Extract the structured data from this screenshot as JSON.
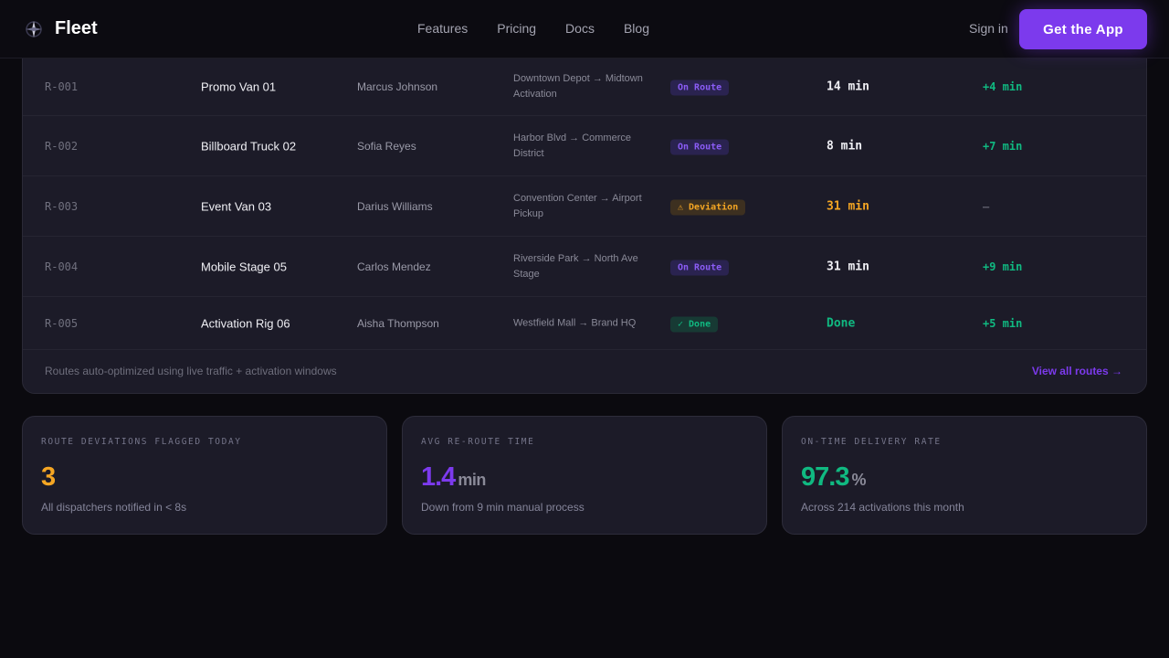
{
  "header": {
    "brand": "Fleet",
    "nav": [
      "Features",
      "Pricing",
      "Docs",
      "Blog"
    ],
    "sign_in": "Sign in",
    "cta": "Get the App"
  },
  "routes": [
    {
      "id": "R-001",
      "vehicle": "Promo Van 01",
      "driver": "Marcus Johnson",
      "route": "Downtown Depot → Midtown Activation",
      "status": "On Route",
      "status_type": "onroute",
      "eta": "14 min",
      "eta_type": "normal",
      "buffer": "+4 min"
    },
    {
      "id": "R-002",
      "vehicle": "Billboard Truck 02",
      "driver": "Sofia Reyes",
      "route": "Harbor Blvd → Commerce District",
      "status": "On Route",
      "status_type": "onroute",
      "eta": "8 min",
      "eta_type": "normal",
      "buffer": "+7 min"
    },
    {
      "id": "R-003",
      "vehicle": "Event Van 03",
      "driver": "Darius Williams",
      "route": "Convention Center → Airport Pickup",
      "status": "⚠ Deviation",
      "status_type": "deviation",
      "eta": "31 min",
      "eta_type": "warn",
      "buffer": "—"
    },
    {
      "id": "R-004",
      "vehicle": "Mobile Stage 05",
      "driver": "Carlos Mendez",
      "route": "Riverside Park → North Ave Stage",
      "status": "On Route",
      "status_type": "onroute",
      "eta": "31 min",
      "eta_type": "normal",
      "buffer": "+9 min"
    },
    {
      "id": "R-005",
      "vehicle": "Activation Rig 06",
      "driver": "Aisha Thompson",
      "route": "Westfield Mall → Brand HQ",
      "status": "✓ Done",
      "status_type": "done",
      "eta": "Done",
      "eta_type": "done",
      "buffer": "+5 min"
    }
  ],
  "footer": {
    "note": "Routes auto-optimized using live traffic + activation windows",
    "view_all": "View all routes →"
  },
  "stats": [
    {
      "label": "ROUTE DEVIATIONS FLAGGED TODAY",
      "value": "3",
      "unit": "",
      "sub": "All dispatchers notified in < 8s",
      "color": "#f5a623"
    },
    {
      "label": "AVG RE-ROUTE TIME",
      "value": "1.4",
      "unit": "min",
      "sub": "Down from 9 min manual process",
      "color": "#7c3aed"
    },
    {
      "label": "ON-TIME DELIVERY RATE",
      "value": "97.3",
      "unit": "%",
      "sub": "Across 214 activations this month",
      "color": "#10b981"
    }
  ],
  "colors": {
    "accent": "#7c3aed",
    "warn": "#f5a623",
    "success": "#10b981"
  }
}
